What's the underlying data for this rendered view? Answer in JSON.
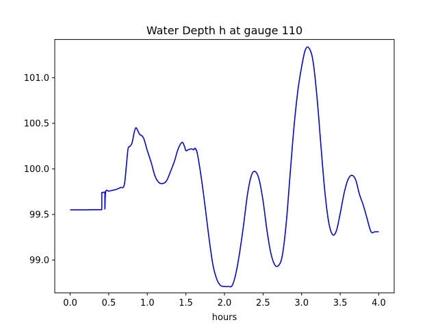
{
  "chart_data": {
    "type": "line",
    "title": "Water Depth h at gauge 110",
    "xlabel": "hours",
    "ylabel": "",
    "xlim": [
      -0.2,
      4.2
    ],
    "ylim": [
      98.64,
      101.42
    ],
    "xticks": [
      0.0,
      0.5,
      1.0,
      1.5,
      2.0,
      2.5,
      3.0,
      3.5,
      4.0
    ],
    "xtick_labels": [
      "0.0",
      "0.5",
      "1.0",
      "1.5",
      "2.0",
      "2.5",
      "3.0",
      "3.5",
      "4.0"
    ],
    "yticks": [
      99.0,
      99.5,
      100.0,
      100.5,
      101.0
    ],
    "ytick_labels": [
      "99.0",
      "99.5",
      "100.0",
      "100.5",
      "101.0"
    ],
    "grid": false,
    "series": [
      {
        "color": "#0000dd",
        "x": [
          0.0,
          0.1,
          0.2,
          0.3,
          0.39,
          0.41,
          0.41,
          0.44,
          0.45,
          0.45,
          0.46,
          0.5,
          0.55,
          0.6,
          0.65,
          0.7,
          0.73,
          0.75,
          0.77,
          0.8,
          0.83,
          0.85,
          0.87,
          0.9,
          0.95,
          1.0,
          1.05,
          1.1,
          1.15,
          1.2,
          1.25,
          1.3,
          1.35,
          1.4,
          1.45,
          1.48,
          1.5,
          1.53,
          1.57,
          1.6,
          1.62,
          1.65,
          1.7,
          1.75,
          1.8,
          1.85,
          1.9,
          1.95,
          2.0,
          2.05,
          2.1,
          2.15,
          2.2,
          2.25,
          2.3,
          2.35,
          2.4,
          2.45,
          2.5,
          2.55,
          2.6,
          2.65,
          2.7,
          2.75,
          2.8,
          2.85,
          2.9,
          2.95,
          3.0,
          3.05,
          3.1,
          3.15,
          3.2,
          3.25,
          3.3,
          3.35,
          3.4,
          3.45,
          3.5,
          3.55,
          3.6,
          3.65,
          3.7,
          3.75,
          3.8,
          3.85,
          3.9,
          3.95,
          4.0
        ],
        "y": [
          99.55,
          99.55,
          99.55,
          99.552,
          99.552,
          99.552,
          99.74,
          99.745,
          99.745,
          99.56,
          99.75,
          99.755,
          99.765,
          99.775,
          99.795,
          99.82,
          100.05,
          100.22,
          100.245,
          100.28,
          100.4,
          100.45,
          100.43,
          100.38,
          100.34,
          100.2,
          100.07,
          99.92,
          99.85,
          99.84,
          99.87,
          99.97,
          100.08,
          100.22,
          100.29,
          100.25,
          100.2,
          100.21,
          100.22,
          100.21,
          100.225,
          100.16,
          99.9,
          99.58,
          99.24,
          98.95,
          98.79,
          98.72,
          98.71,
          98.71,
          98.72,
          98.86,
          99.1,
          99.4,
          99.73,
          99.93,
          99.97,
          99.88,
          99.65,
          99.33,
          99.08,
          98.95,
          98.94,
          99.05,
          99.4,
          99.93,
          100.45,
          100.85,
          101.12,
          101.31,
          101.32,
          101.17,
          100.78,
          100.26,
          99.76,
          99.42,
          99.28,
          99.32,
          99.51,
          99.73,
          99.88,
          99.93,
          99.88,
          99.72,
          99.6,
          99.45,
          99.31,
          99.31,
          99.31
        ]
      }
    ]
  }
}
